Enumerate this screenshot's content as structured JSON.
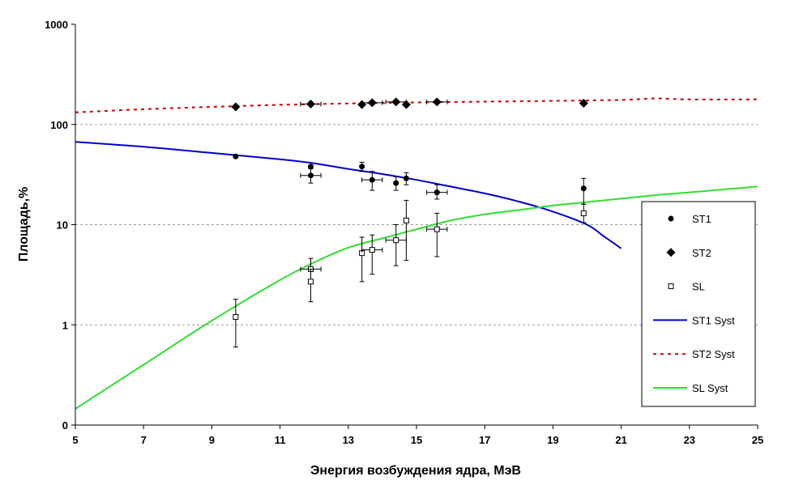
{
  "chart_data": {
    "type": "scatter",
    "xlabel": "Энергия возбуждения ядра, МэВ",
    "ylabel": "Площадь,%",
    "xlim": [
      5,
      25
    ],
    "ylim": [
      0.1,
      1000
    ],
    "yscale": "log",
    "x_ticks": [
      5,
      7,
      9,
      11,
      13,
      15,
      17,
      19,
      21,
      23,
      25
    ],
    "y_ticks": [
      {
        "value": 0.1,
        "label": "0"
      },
      {
        "value": 1,
        "label": "1"
      },
      {
        "value": 10,
        "label": "10"
      },
      {
        "value": 100,
        "label": "100"
      },
      {
        "value": 1000,
        "label": "1000"
      }
    ],
    "grid": "horizontal dashed",
    "legend_position": "right",
    "series": [
      {
        "name": "ST1",
        "kind": "points",
        "marker": "circle",
        "color": "#000000",
        "points": [
          {
            "x": 9.7,
            "y": 48
          },
          {
            "x": 11.9,
            "y": 38
          },
          {
            "x": 11.9,
            "y": 31,
            "xerr": 0.3,
            "yerr": [
              26,
              36
            ]
          },
          {
            "x": 13.4,
            "y": 38,
            "yerr": [
              34,
              42
            ]
          },
          {
            "x": 13.7,
            "y": 28,
            "xerr": 0.3,
            "yerr": [
              22,
              34
            ]
          },
          {
            "x": 14.4,
            "y": 26,
            "yerr": [
              22,
              30
            ]
          },
          {
            "x": 14.7,
            "y": 29,
            "yerr": [
              25,
              33
            ]
          },
          {
            "x": 15.6,
            "y": 21,
            "xerr": 0.3,
            "yerr": [
              18,
              25
            ]
          },
          {
            "x": 19.9,
            "y": 23,
            "yerr": [
              16,
              29
            ]
          }
        ]
      },
      {
        "name": "ST2",
        "kind": "points",
        "marker": "diamond",
        "color": "#000000",
        "points": [
          {
            "x": 9.7,
            "y": 150
          },
          {
            "x": 11.9,
            "y": 160,
            "xerr": 0.3
          },
          {
            "x": 13.4,
            "y": 158
          },
          {
            "x": 13.7,
            "y": 165,
            "xerr": 0.3
          },
          {
            "x": 14.4,
            "y": 168,
            "xerr": 0.3
          },
          {
            "x": 14.7,
            "y": 158
          },
          {
            "x": 15.6,
            "y": 168,
            "xerr": 0.3
          },
          {
            "x": 19.9,
            "y": 163
          }
        ]
      },
      {
        "name": "SL",
        "kind": "points",
        "marker": "open-square",
        "color": "#000000",
        "points": [
          {
            "x": 9.7,
            "y": 1.2,
            "yerr": [
              0.6,
              1.8
            ]
          },
          {
            "x": 11.9,
            "y": 3.6,
            "xerr": 0.3,
            "yerr": [
              2.7,
              4.6
            ]
          },
          {
            "x": 11.9,
            "y": 2.7,
            "yerr": [
              1.7,
              3.6
            ]
          },
          {
            "x": 13.4,
            "y": 5.2,
            "yerr": [
              2.7,
              7.5
            ]
          },
          {
            "x": 13.7,
            "y": 5.6,
            "xerr": 0.3,
            "yerr": [
              3.2,
              7.9
            ]
          },
          {
            "x": 14.4,
            "y": 7.0,
            "xerr": 0.3,
            "yerr": [
              3.9,
              10.0
            ]
          },
          {
            "x": 14.7,
            "y": 11.0,
            "yerr": [
              4.4,
              17.5
            ]
          },
          {
            "x": 15.6,
            "y": 9.0,
            "xerr": 0.3,
            "yerr": [
              4.8,
              13
            ]
          },
          {
            "x": 19.9,
            "y": 13.0,
            "yerr": [
              10.5,
              16
            ]
          }
        ]
      },
      {
        "name": "ST1 Syst",
        "kind": "line",
        "style": "solid",
        "color": "#0000CC",
        "x": [
          5,
          7,
          9,
          11,
          12,
          13,
          14,
          15,
          16,
          17,
          18,
          19,
          20,
          20.5,
          21
        ],
        "y": [
          67,
          60,
          52,
          45,
          41,
          36,
          32,
          28,
          24,
          20.5,
          17,
          13.5,
          10,
          7.6,
          5.8
        ]
      },
      {
        "name": "ST2 Syst",
        "kind": "line",
        "style": "dashed",
        "color": "#CC0000",
        "x": [
          5,
          7,
          9,
          11,
          13,
          15,
          17,
          19,
          21,
          22,
          23,
          25
        ],
        "y": [
          132,
          142,
          150,
          157,
          162,
          166,
          169,
          172,
          176,
          182,
          178,
          178
        ]
      },
      {
        "name": "SL Syst",
        "kind": "line",
        "style": "solid",
        "color": "#33DD33",
        "x": [
          5,
          7,
          9,
          11,
          12,
          13,
          14,
          15,
          16,
          17,
          18,
          19,
          20,
          21,
          22,
          23,
          25
        ],
        "y": [
          0.145,
          0.4,
          1.1,
          2.8,
          4.2,
          5.9,
          7.3,
          9.0,
          11.0,
          12.7,
          14.0,
          15.5,
          16.8,
          18.2,
          19.7,
          21,
          24
        ]
      }
    ]
  }
}
